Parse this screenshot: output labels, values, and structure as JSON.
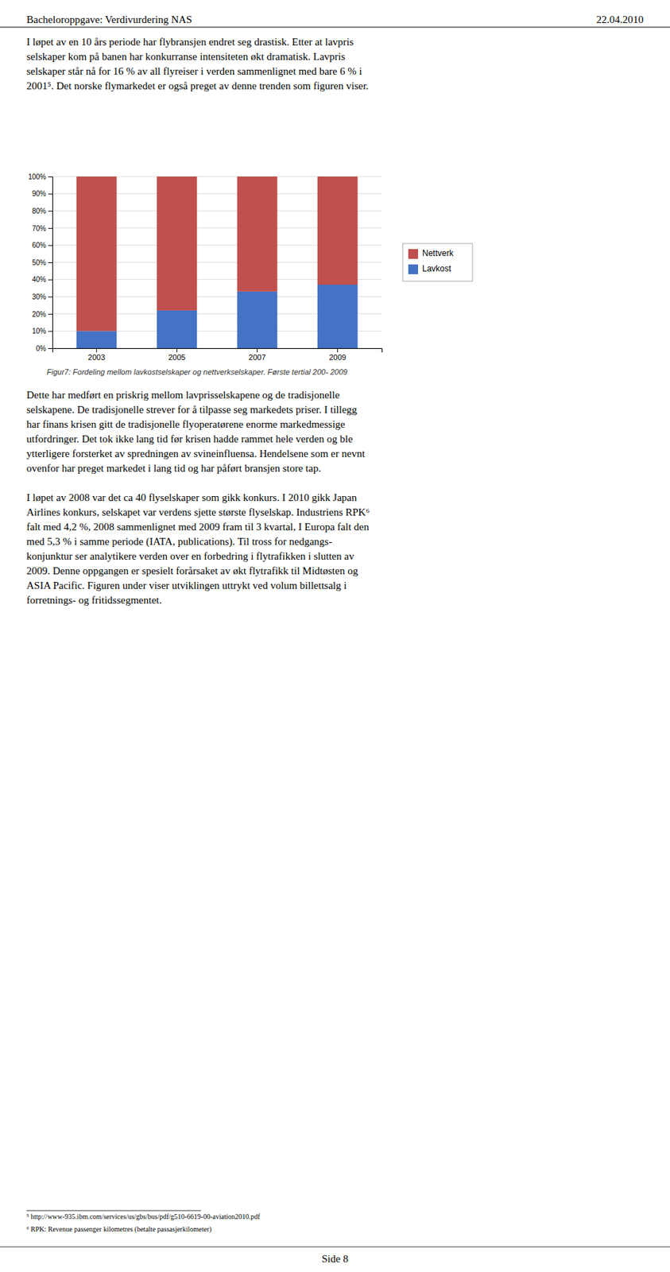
{
  "header_title": "Bacheloroppgave: Verdivurdering NAS",
  "header_date": "22.04.2010",
  "body_text": [
    "I løpet av en 10 års periode har flybransjen endret seg drastisk. Etter at lavpris",
    "selskaper kom på banen har konkurranse intensiteten økt dramatisk. Lavpris",
    "selskaper står nå for 16 % av all flyreiser i verden sammenlignet med bare 6 % i",
    "2001⁵. Det norske flymarkedet er også preget av denne trenden som figuren viser."
  ],
  "chart_data": {
    "type": "bar",
    "stacked": true,
    "categories": [
      "2003",
      "2005",
      "2007",
      "2009"
    ],
    "series": [
      {
        "name": "Lavkost",
        "color": "#4472C4",
        "values": [
          0.1,
          0.22,
          0.33,
          0.37
        ]
      },
      {
        "name": "Nettverk",
        "color": "#C0504D",
        "values": [
          0.9,
          0.78,
          0.67,
          0.63
        ]
      }
    ],
    "ylim": [
      0,
      1.0
    ],
    "yticks": [
      {
        "value": 0.0,
        "label": "0%"
      },
      {
        "value": 0.1,
        "label": "10%"
      },
      {
        "value": 0.2,
        "label": "20%"
      },
      {
        "value": 0.3,
        "label": "30%"
      },
      {
        "value": 0.4,
        "label": "40%"
      },
      {
        "value": 0.5,
        "label": "50%"
      },
      {
        "value": 0.6,
        "label": "60%"
      },
      {
        "value": 0.7,
        "label": "70%"
      },
      {
        "value": 0.8,
        "label": "80%"
      },
      {
        "value": 0.9,
        "label": "90%"
      },
      {
        "value": 1.0,
        "label": "100%"
      }
    ],
    "grid": true,
    "legend": "right"
  },
  "caption": "Figur7: Fordeling mellom lavkostselskaper og nettverkselskaper. Første tertial 200- 2009",
  "text_after": [
    [
      "Dette har medført en priskrig mellom lavprisselskapene og de tradisjonelle",
      "selskapene. De tradisjonelle strever for å tilpasse seg markedets priser. I tillegg",
      "har finans krisen gitt de tradisjonelle flyoperatørene enorme markedmessige",
      "utfordringer. Det tok ikke lang tid før krisen hadde rammet hele verden og ble",
      "ytterligere forsterket av spredningen av svineinfluensa. Hendelsene som er nevnt",
      "ovenfor har preget markedet i lang tid og har påført bransjen store tap."
    ],
    [
      "I løpet av 2008 var det ca 40 flyselskaper som gikk konkurs. I 2010 gikk Japan",
      "Airlines konkurs, selskapet var verdens sjette største flyselskap. Industriens RPK⁶",
      "falt med 4,2 %, 2008 sammenlignet med 2009 fram til 3 kvartal, I Europa falt den",
      "med 5,3 % i samme periode (IATA, publications). Til tross for nedgangs-",
      "konjunktur ser analytikere verden over en forbedring i flytrafikken i slutten av",
      "2009. Denne oppgangen er spesielt forårsaket av økt flytrafikk til Midtøsten og",
      "ASIA Pacific. Figuren under viser utviklingen uttrykt ved volum billettsalg i",
      "forretnings- og fritidssegmentet."
    ]
  ],
  "footnotes": [
    "⁵ http://www-935.ibm.com/services/us/gbs/bus/pdf/g510-6619-00-aviation2010.pdf",
    "⁶ RPK: Revenue passenger kilometres (betalte passasjerkilometer)"
  ],
  "page_label": "Side 8"
}
